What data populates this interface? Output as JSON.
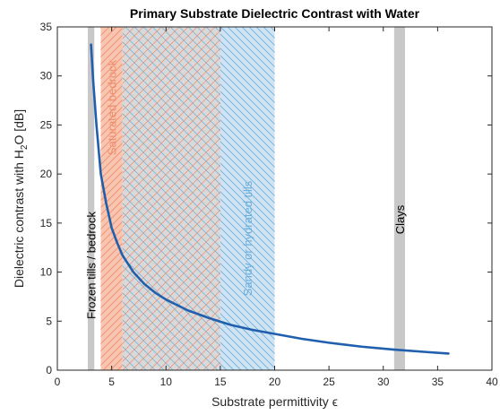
{
  "chart_data": {
    "type": "line",
    "title": "Primary Substrate Dielectric Contrast with Water",
    "xlabel": "Substrate permittivity ϵ",
    "ylabel_parts": {
      "pre": "Dielectric contrast with H",
      "sub": "2",
      "post": "O [dB]"
    },
    "xlim": [
      0,
      40
    ],
    "ylim": [
      0,
      35
    ],
    "xticks": [
      0,
      5,
      10,
      15,
      20,
      25,
      30,
      35,
      40
    ],
    "yticks": [
      0,
      5,
      10,
      15,
      20,
      25,
      30,
      35
    ],
    "grid": false,
    "series": [
      {
        "color": "#1f5fad",
        "x": [
          3.1,
          3.3,
          3.6,
          4.0,
          4.5,
          5.0,
          5.5,
          6.0,
          7.0,
          8.0,
          9.0,
          10.0,
          12.0,
          14.0,
          16.0,
          18.0,
          20.0,
          22.5,
          25.0,
          28.0,
          31.0,
          34.0,
          36.0
        ],
        "y": [
          33.2,
          29.5,
          25.0,
          20.0,
          17.0,
          14.5,
          13.0,
          11.7,
          10.0,
          8.8,
          7.9,
          7.2,
          6.1,
          5.3,
          4.6,
          4.1,
          3.7,
          3.2,
          2.8,
          2.4,
          2.1,
          1.85,
          1.7
        ]
      }
    ],
    "regions": [
      {
        "label": "Frozen tills / bedrock",
        "x": [
          2.8,
          3.4
        ],
        "color": "#c8c8c8",
        "hatch": false,
        "label_color": "#000000"
      },
      {
        "label": "Saturated bedrock",
        "x": [
          4.0,
          6.0
        ],
        "color": "#f7c5b0",
        "hatch": "diag-up",
        "hatch_color": "#f08b6a",
        "label_color": "#f08b6a"
      },
      {
        "label": "",
        "x": [
          6.0,
          15.0
        ],
        "color": "#d9d9d9",
        "hatch": "cross",
        "hatch_color": "#b0a0c8",
        "label_color": "#000000"
      },
      {
        "label": "Sandy or hydrated tills",
        "x": [
          15.0,
          20.0
        ],
        "color": "#cfe3f3",
        "hatch": "diag-down",
        "hatch_color": "#6aaedb",
        "label_color": "#6aaedb"
      },
      {
        "label": "Clays",
        "x": [
          31.0,
          32.0
        ],
        "color": "#c8c8c8",
        "hatch": false,
        "label_color": "#000000"
      }
    ]
  }
}
